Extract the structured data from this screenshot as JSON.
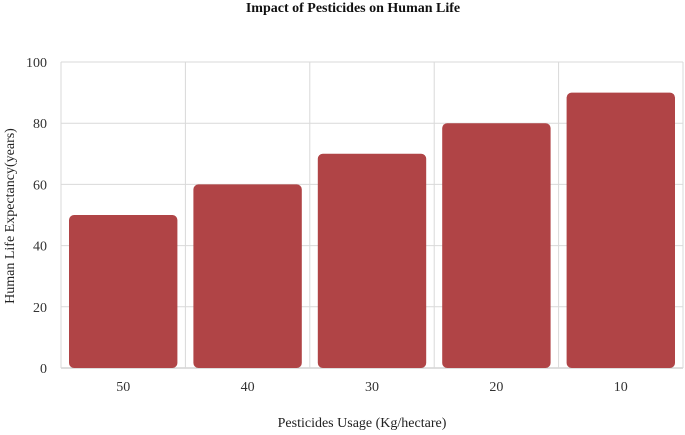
{
  "chart_data": {
    "type": "bar",
    "title": "Impact of Pesticides on Human Life",
    "xlabel": "Pesticides Usage (Kg/hectare)",
    "ylabel": "Human Life Expectancy(years)",
    "categories": [
      "50",
      "40",
      "30",
      "20",
      "10"
    ],
    "values": [
      50,
      60,
      70,
      80,
      90
    ],
    "ylim": [
      0,
      100
    ],
    "yticks": [
      0,
      20,
      40,
      60,
      80,
      100
    ],
    "grid": true,
    "bar_color": "#b04446"
  }
}
